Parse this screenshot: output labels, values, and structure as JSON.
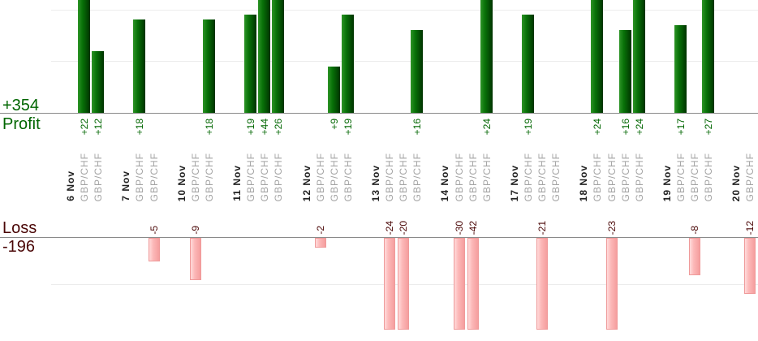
{
  "summary": {
    "profit_total_label": "+354",
    "profit_axis_label": "Profit",
    "loss_axis_label": "Loss",
    "loss_total_label": "-196"
  },
  "colors": {
    "profit_text": "#006600",
    "loss_text": "#4a0606",
    "date_text": "#222222",
    "symbol_text": "#a3a3a3",
    "axis_line": "#8a8a8a",
    "grid_line": "#ececec",
    "green_bar_start": "#2d9426",
    "green_bar_mid": "#087108",
    "green_bar_end": "#003300",
    "pink_bar_start": "#ffdbdb",
    "pink_bar_mid": "#fcb8b8",
    "pink_bar_end": "#f59e9e",
    "pink_bar_border": "#ef9a9a"
  },
  "chart_data": {
    "type": "bar",
    "title": "",
    "description": "Dual-baseline daily trade result chart: green profit bars grow upward from the Profit baseline, pink loss bars grow downward from the Loss baseline; one column per trade, grouped by date.",
    "legend_position": "none",
    "grid": true,
    "gridline_interval": 10,
    "profit_axis": {
      "label": "Profit",
      "total": 354,
      "total_label": "+354",
      "visible_unit_range": [
        0,
        22
      ]
    },
    "loss_axis": {
      "label": "Loss",
      "total": -196,
      "total_label": "-196",
      "visible_unit_range": [
        0,
        -20
      ]
    },
    "groups": [
      {
        "date": "6 Nov",
        "trades": [
          {
            "symbol": "GBP/CHF",
            "value": 22,
            "label": "+22"
          },
          {
            "symbol": "GBP/CHF",
            "value": 12,
            "label": "+12"
          }
        ]
      },
      {
        "date": "7 Nov",
        "trades": [
          {
            "symbol": "GBP/CHF",
            "value": 18,
            "label": "+18"
          },
          {
            "symbol": "GBP/CHF",
            "value": -5,
            "label": "-5"
          }
        ]
      },
      {
        "date": "10 Nov",
        "trades": [
          {
            "symbol": "GBP/CHF",
            "value": -9,
            "label": "-9"
          },
          {
            "symbol": "GBP/CHF",
            "value": 18,
            "label": "+18"
          }
        ]
      },
      {
        "date": "11 Nov",
        "trades": [
          {
            "symbol": "GBP/CHF",
            "value": 19,
            "label": "+19"
          },
          {
            "symbol": "GBP/CHF",
            "value": 44,
            "label": "+44"
          },
          {
            "symbol": "GBP/CHF",
            "value": 26,
            "label": "+26"
          }
        ]
      },
      {
        "date": "12 Nov",
        "trades": [
          {
            "symbol": "GBP/CHF",
            "value": -2,
            "label": "-2"
          },
          {
            "symbol": "GBP/CHF",
            "value": 9,
            "label": "+9"
          },
          {
            "symbol": "GBP/CHF",
            "value": 19,
            "label": "+19"
          }
        ]
      },
      {
        "date": "13 Nov",
        "trades": [
          {
            "symbol": "GBP/CHF",
            "value": -24,
            "label": "-24"
          },
          {
            "symbol": "GBP/CHF",
            "value": -20,
            "label": "-20"
          },
          {
            "symbol": "GBP/CHF",
            "value": 16,
            "label": "+16"
          }
        ]
      },
      {
        "date": "14 Nov",
        "trades": [
          {
            "symbol": "GBP/CHF",
            "value": -30,
            "label": "-30"
          },
          {
            "symbol": "GBP/CHF",
            "value": -42,
            "label": "-42"
          },
          {
            "symbol": "GBP/CHF",
            "value": 24,
            "label": "+24"
          }
        ]
      },
      {
        "date": "17 Nov",
        "trades": [
          {
            "symbol": "GBP/CHF",
            "value": 19,
            "label": "+19"
          },
          {
            "symbol": "GBP/CHF",
            "value": -21,
            "label": "-21"
          },
          {
            "symbol": "GBP/CHF",
            "value": 0,
            "label": ""
          }
        ]
      },
      {
        "date": "18 Nov",
        "trades": [
          {
            "symbol": "GBP/CHF",
            "value": 24,
            "label": "+24"
          },
          {
            "symbol": "GBP/CHF",
            "value": -23,
            "label": "-23"
          },
          {
            "symbol": "GBP/CHF",
            "value": 16,
            "label": "+16"
          },
          {
            "symbol": "GBP/CHF",
            "value": 24,
            "label": "+24"
          }
        ]
      },
      {
        "date": "19 Nov",
        "trades": [
          {
            "symbol": "GBP/CHF",
            "value": 17,
            "label": "+17"
          },
          {
            "symbol": "GBP/CHF",
            "value": -8,
            "label": "-8"
          },
          {
            "symbol": "GBP/CHF",
            "value": 27,
            "label": "+27"
          }
        ]
      },
      {
        "date": "20 Nov",
        "trades": [
          {
            "symbol": "GBP/CHF",
            "value": -12,
            "label": "-12"
          }
        ]
      }
    ]
  }
}
